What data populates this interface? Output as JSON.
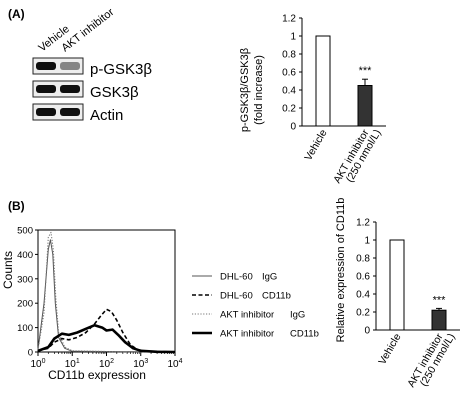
{
  "panel_a": {
    "label": "(A)",
    "blot": {
      "lane_labels": [
        "Vehicle",
        "AKT inhibitor"
      ],
      "bands": [
        {
          "name": "p-GSK3β",
          "intensities": [
            1.0,
            0.45
          ]
        },
        {
          "name": "GSK3β",
          "intensities": [
            1.0,
            1.0
          ]
        },
        {
          "name": "Actin",
          "intensities": [
            1.0,
            1.0
          ]
        }
      ]
    }
  },
  "panel_b": {
    "label": "(B)",
    "legend": [
      {
        "line": "DHL-60",
        "marker": "IgG",
        "style": "thin"
      },
      {
        "line": "DHL-60",
        "marker": "CD11b",
        "style": "dashed"
      },
      {
        "line": "AKT inhibitor",
        "marker": "IgG",
        "style": "dotted"
      },
      {
        "line": "AKT inhibitor",
        "marker": "CD11b",
        "style": "thick"
      }
    ]
  },
  "chart_data": [
    {
      "type": "bar",
      "categories": [
        "Vehicle",
        "AKT inhibitor"
      ],
      "category_sublabels": [
        "",
        "(250 nmol/L)"
      ],
      "values": [
        1.0,
        0.45
      ],
      "errors": [
        0,
        0.07
      ],
      "colors": [
        "#ffffff",
        "#333333"
      ],
      "significance": [
        "",
        "***"
      ],
      "ylabel": "p-GSK3β/GSK3β",
      "ylabel2": "(fold increase)",
      "ylim": [
        0,
        1.2
      ],
      "yticks": [
        "0",
        "0.2",
        "0.4",
        "0.6",
        "0.8",
        "1",
        "1.2"
      ]
    },
    {
      "type": "line",
      "xlabel": "CD11b expression",
      "ylabel": "Counts",
      "xscale": "log",
      "xlim": [
        1,
        10000
      ],
      "ylim": [
        0,
        500
      ],
      "yticks": [
        "0",
        "100",
        "200",
        "300",
        "400",
        "500"
      ],
      "xticks": [
        {
          "base": "10",
          "exp": "0"
        },
        {
          "base": "10",
          "exp": "1"
        },
        {
          "base": "10",
          "exp": "2"
        },
        {
          "base": "10",
          "exp": "3"
        },
        {
          "base": "10",
          "exp": "4"
        }
      ],
      "series": [
        {
          "style": "thin",
          "points": [
            [
              1,
              10
            ],
            [
              1.5,
              200
            ],
            [
              2,
              420
            ],
            [
              2.3,
              460
            ],
            [
              2.7,
              400
            ],
            [
              3.2,
              200
            ],
            [
              4,
              60
            ],
            [
              6,
              15
            ],
            [
              10,
              3
            ],
            [
              100,
              2
            ],
            [
              1000,
              1
            ],
            [
              10000,
              0
            ]
          ]
        },
        {
          "style": "dashed",
          "points": [
            [
              1,
              5
            ],
            [
              2,
              15
            ],
            [
              3,
              40
            ],
            [
              5,
              55
            ],
            [
              8,
              50
            ],
            [
              14,
              60
            ],
            [
              25,
              80
            ],
            [
              45,
              115
            ],
            [
              70,
              150
            ],
            [
              100,
              175
            ],
            [
              140,
              165
            ],
            [
              200,
              130
            ],
            [
              300,
              80
            ],
            [
              500,
              30
            ],
            [
              800,
              10
            ],
            [
              1500,
              3
            ],
            [
              10000,
              0
            ]
          ]
        },
        {
          "style": "dotted",
          "points": [
            [
              1,
              10
            ],
            [
              1.5,
              160
            ],
            [
              2,
              470
            ],
            [
              2.4,
              490
            ],
            [
              2.8,
              420
            ],
            [
              3.3,
              220
            ],
            [
              4,
              80
            ],
            [
              6,
              20
            ],
            [
              10,
              5
            ],
            [
              100,
              2
            ],
            [
              1000,
              1
            ],
            [
              10000,
              0
            ]
          ]
        },
        {
          "style": "thick",
          "points": [
            [
              1,
              5
            ],
            [
              2,
              20
            ],
            [
              3,
              55
            ],
            [
              5,
              75
            ],
            [
              8,
              70
            ],
            [
              14,
              80
            ],
            [
              25,
              95
            ],
            [
              45,
              110
            ],
            [
              75,
              100
            ],
            [
              100,
              88
            ],
            [
              150,
              92
            ],
            [
              220,
              70
            ],
            [
              350,
              40
            ],
            [
              600,
              15
            ],
            [
              1000,
              5
            ],
            [
              3000,
              1
            ],
            [
              10000,
              0
            ]
          ]
        }
      ]
    },
    {
      "type": "bar",
      "categories": [
        "Vehicle",
        "AKT inhibitor"
      ],
      "category_sublabels": [
        "",
        "(250 nmol/L)"
      ],
      "values": [
        1.0,
        0.22
      ],
      "errors": [
        0,
        0.02
      ],
      "colors": [
        "#ffffff",
        "#333333"
      ],
      "significance": [
        "",
        "***"
      ],
      "ylabel": "Relative expression of CD11b",
      "ylim": [
        0,
        1.2
      ],
      "yticks": [
        "0",
        "0.2",
        "0.4",
        "0.6",
        "0.8",
        "1",
        "1.2"
      ]
    }
  ]
}
